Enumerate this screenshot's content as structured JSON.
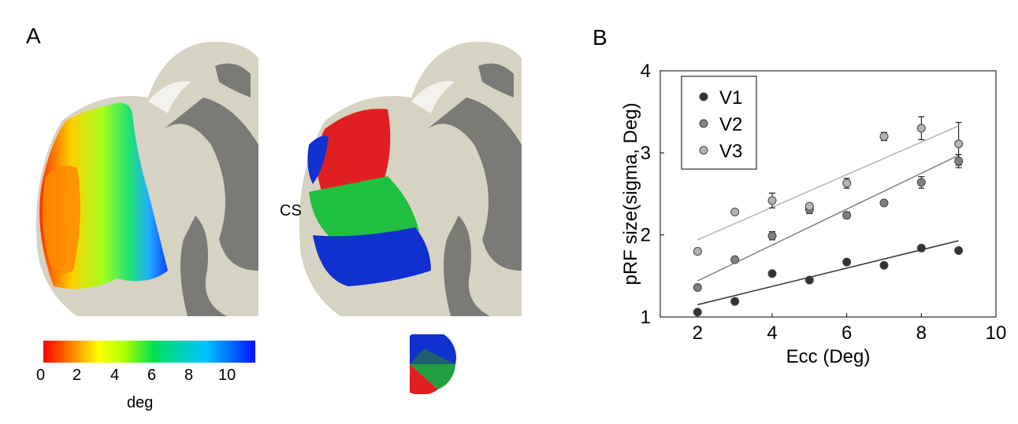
{
  "panels": {
    "a_label": "A",
    "b_label": "B"
  },
  "brain": {
    "cs_label": "CS"
  },
  "colorbar": {
    "ticks": [
      "0",
      "2",
      "4",
      "6",
      "8",
      "10"
    ],
    "unit": "deg",
    "colors": [
      "#ff0000",
      "#ffff00",
      "#00e050",
      "#00c0ff",
      "#0010ff"
    ]
  },
  "chart_data": {
    "type": "scatter",
    "xlabel": "Ecc (Deg)",
    "ylabel": "pRF size(sigma, Deg)",
    "xlim": [
      1,
      10
    ],
    "ylim": [
      1,
      4
    ],
    "xticks": [
      2,
      4,
      6,
      8,
      10
    ],
    "yticks": [
      1,
      2,
      3,
      4
    ],
    "grid": false,
    "legend_position": "top-left",
    "x": [
      2,
      3,
      4,
      5,
      6,
      7,
      8,
      9
    ],
    "series": [
      {
        "name": "V1",
        "color": "#333333",
        "values": [
          1.06,
          1.19,
          1.53,
          1.45,
          1.67,
          1.63,
          1.84,
          1.81
        ],
        "errors": [
          0.02,
          0.02,
          0.02,
          0.02,
          0.02,
          0.02,
          0.02,
          0.03
        ],
        "fit": [
          1.15,
          1.93
        ]
      },
      {
        "name": "V2",
        "color": "#808080",
        "values": [
          1.36,
          1.7,
          1.99,
          2.31,
          2.24,
          2.39,
          2.64,
          2.9
        ],
        "errors": [
          0.02,
          0.02,
          0.05,
          0.05,
          0.04,
          0.02,
          0.07,
          0.08
        ],
        "fit": [
          1.44,
          2.97
        ]
      },
      {
        "name": "V3",
        "color": "#b4b4b4",
        "values": [
          1.8,
          2.28,
          2.42,
          2.35,
          2.63,
          3.2,
          3.3,
          3.11
        ],
        "errors": [
          0.03,
          0.02,
          0.09,
          0.03,
          0.06,
          0.05,
          0.14,
          0.26
        ],
        "fit": [
          1.94,
          3.33
        ]
      }
    ]
  }
}
